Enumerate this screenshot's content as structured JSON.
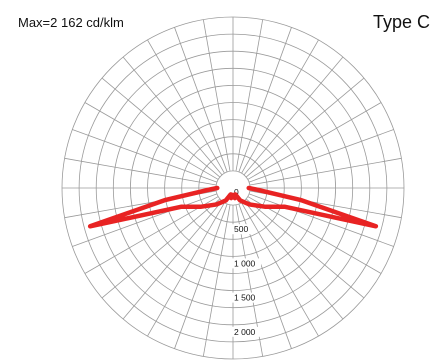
{
  "header": {
    "max_label": "Max=2 162 cd/klm",
    "type_label": "Type C"
  },
  "colors": {
    "curve": "#e82323",
    "grid": "#9a9a9a",
    "background": "#ffffff"
  },
  "chart_data": {
    "type": "polar",
    "radial_unit": "cd/klm",
    "radial_ticks": [
      {
        "value": 0,
        "label": "0"
      },
      {
        "value": 500,
        "label": "500"
      },
      {
        "value": 1000,
        "label": "1 000"
      },
      {
        "value": 1500,
        "label": "1 500"
      },
      {
        "value": 2000,
        "label": "2 000"
      }
    ],
    "radial_max": 2500,
    "angle_step_deg": 10,
    "grid": true,
    "angle_convention": "degrees from downward vertical, positive to the right",
    "series": [
      {
        "points": [
          {
            "angle": -90,
            "value": 230
          },
          {
            "angle": -85,
            "value": 400
          },
          {
            "angle": -80,
            "value": 1000
          },
          {
            "angle": -75,
            "value": 2162
          },
          {
            "angle": -70,
            "value": 800
          },
          {
            "angle": -60,
            "value": 550
          },
          {
            "angle": -45,
            "value": 340
          },
          {
            "angle": -30,
            "value": 210
          },
          {
            "angle": -20,
            "value": 100
          },
          {
            "angle": -10,
            "value": 150
          },
          {
            "angle": 0,
            "value": 100
          },
          {
            "angle": 10,
            "value": 150
          },
          {
            "angle": 20,
            "value": 100
          },
          {
            "angle": 30,
            "value": 210
          },
          {
            "angle": 45,
            "value": 340
          },
          {
            "angle": 60,
            "value": 550
          },
          {
            "angle": 70,
            "value": 800
          },
          {
            "angle": 75,
            "value": 2162
          },
          {
            "angle": 80,
            "value": 1000
          },
          {
            "angle": 85,
            "value": 400
          },
          {
            "angle": 90,
            "value": 230
          }
        ]
      }
    ]
  }
}
